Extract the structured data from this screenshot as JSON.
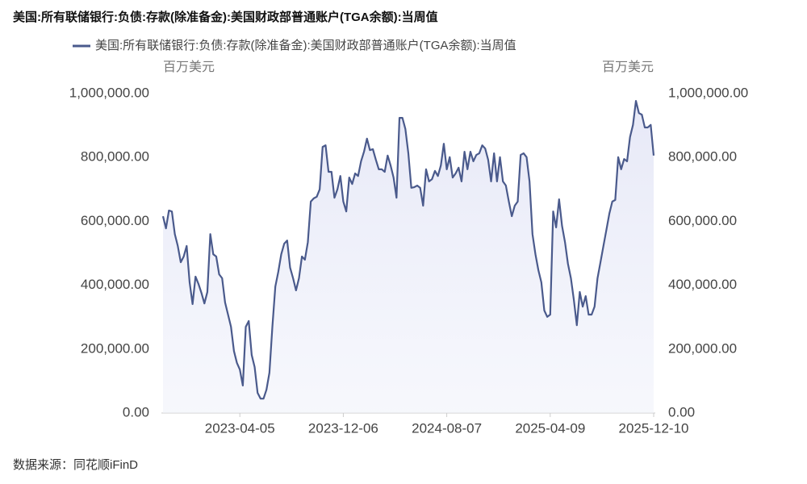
{
  "chart_data": {
    "type": "line",
    "title": "美国:所有联储银行:负债:存款(除准备金):美国财政部普通账户(TGA余额):当周值",
    "yunit": "百万美元",
    "y2unit": "百万美元",
    "source": "数据来源：同花顺iFinD",
    "categories": [
      null,
      null,
      null,
      null,
      null,
      null,
      null,
      null,
      null,
      null,
      null,
      null,
      null,
      null,
      null,
      null,
      null,
      null,
      null,
      null,
      null,
      null,
      null,
      null,
      null,
      null,
      "2023-04-05",
      null,
      null,
      null,
      null,
      null,
      null,
      null,
      null,
      null,
      null,
      null,
      null,
      null,
      null,
      null,
      null,
      null,
      null,
      null,
      null,
      null,
      null,
      null,
      null,
      null,
      null,
      null,
      null,
      null,
      null,
      null,
      null,
      null,
      null,
      "2023-12-06",
      null,
      null,
      null,
      null,
      null,
      null,
      null,
      null,
      null,
      null,
      null,
      null,
      null,
      null,
      null,
      null,
      null,
      null,
      null,
      null,
      null,
      null,
      null,
      null,
      null,
      null,
      null,
      null,
      null,
      null,
      null,
      null,
      null,
      null,
      "2024-08-07",
      null,
      null,
      null,
      null,
      null,
      null,
      null,
      null,
      null,
      null,
      null,
      null,
      null,
      null,
      null,
      null,
      null,
      null,
      null,
      null,
      null,
      null,
      null,
      null,
      null,
      null,
      null,
      null,
      null,
      null,
      null,
      null,
      null,
      null,
      "2025-04-09",
      null,
      null,
      null,
      null,
      null,
      null,
      null,
      null,
      null,
      null,
      null,
      null,
      null,
      null,
      null,
      null,
      null,
      null,
      null,
      null,
      null,
      null,
      null,
      null,
      null,
      null,
      null,
      null,
      null,
      null,
      null,
      null,
      null,
      null,
      "2025-12-10"
    ],
    "series": [
      {
        "name": "美国:所有联储银行:负债:存款(除准备金):美国财政部普通账户(TGA余额):当周值",
        "color": "#4a5a8c",
        "values": [
          616000,
          578000,
          634000,
          631000,
          560000,
          523000,
          472000,
          490000,
          523000,
          409000,
          341000,
          427000,
          404000,
          376000,
          343000,
          379000,
          560000,
          497000,
          490000,
          434000,
          422000,
          346000,
          308000,
          270000,
          194000,
          157000,
          136000,
          86000,
          270000,
          288000,
          182000,
          144000,
          63000,
          45000,
          45000,
          73000,
          126000,
          270000,
          396000,
          442000,
          497000,
          530000,
          540000,
          455000,
          422000,
          384000,
          422000,
          490000,
          480000,
          535000,
          662000,
          672000,
          677000,
          700000,
          833000,
          838000,
          755000,
          755000,
          674000,
          700000,
          742000,
          662000,
          631000,
          737000,
          717000,
          750000,
          742000,
          788000,
          818000,
          859000,
          823000,
          826000,
          793000,
          763000,
          763000,
          755000,
          806000,
          775000,
          737000,
          674000,
          924000,
          924000,
          889000,
          813000,
          705000,
          707000,
          712000,
          705000,
          649000,
          763000,
          725000,
          732000,
          758000,
          742000,
          775000,
          843000,
          763000,
          801000,
          737000,
          750000,
          768000,
          725000,
          818000,
          763000,
          818000,
          788000,
          808000,
          813000,
          838000,
          828000,
          793000,
          725000,
          813000,
          725000,
          801000,
          725000,
          712000,
          662000,
          616000,
          649000,
          662000,
          808000,
          813000,
          801000,
          725000,
          560000,
          497000,
          447000,
          409000,
          321000,
          301000,
          308000,
          631000,
          581000,
          669000,
          586000,
          535000,
          467000,
          422000,
          354000,
          275000,
          379000,
          333000,
          366000,
          308000,
          308000,
          333000,
          422000,
          472000,
          523000,
          573000,
          624000,
          662000,
          667000,
          801000,
          763000,
          795000,
          788000,
          864000,
          902000,
          977000,
          939000,
          934000,
          894000,
          894000,
          902000,
          806000
        ]
      }
    ],
    "ylim": [
      0,
      1000000
    ],
    "yticks": [
      {
        "value": 0,
        "label": "0.00"
      },
      {
        "value": 200000,
        "label": "200,000.00"
      },
      {
        "value": 400000,
        "label": "400,000.00"
      },
      {
        "value": 600000,
        "label": "600,000.00"
      },
      {
        "value": 800000,
        "label": "800,000.00"
      },
      {
        "value": 1000000,
        "label": "1,000,000.00"
      }
    ],
    "y2lim": [
      0,
      1000000
    ],
    "y2ticks": [
      {
        "value": 0,
        "label": "0.00"
      },
      {
        "value": 200000,
        "label": "200,000.00"
      },
      {
        "value": 400000,
        "label": "400,000.00"
      },
      {
        "value": 600000,
        "label": "600,000.00"
      },
      {
        "value": 800000,
        "label": "800,000.00"
      },
      {
        "value": 1000000,
        "label": "1,000,000.00"
      }
    ],
    "grid": false,
    "area": true
  }
}
